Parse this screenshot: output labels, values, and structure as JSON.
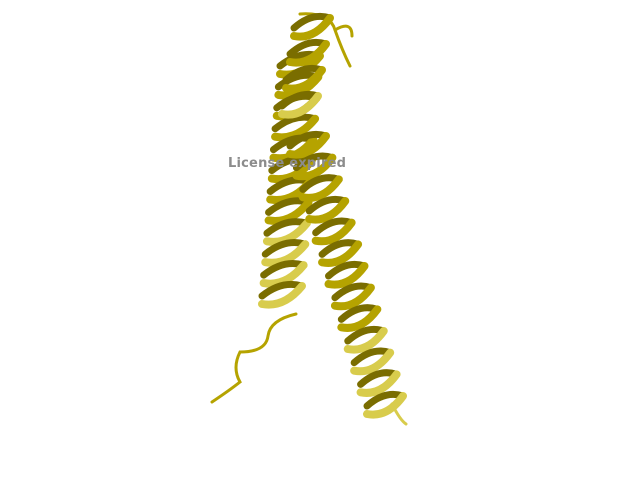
{
  "image": {
    "subject": "protein-helix-ribbon",
    "background_color": "#ffffff",
    "ribbon_color": "#b5a300",
    "ribbon_light_color": "#d8cc4c",
    "ribbon_dark_color": "#7a6d00"
  },
  "watermark": {
    "text": "License expired",
    "color": "#8c8c8c"
  }
}
